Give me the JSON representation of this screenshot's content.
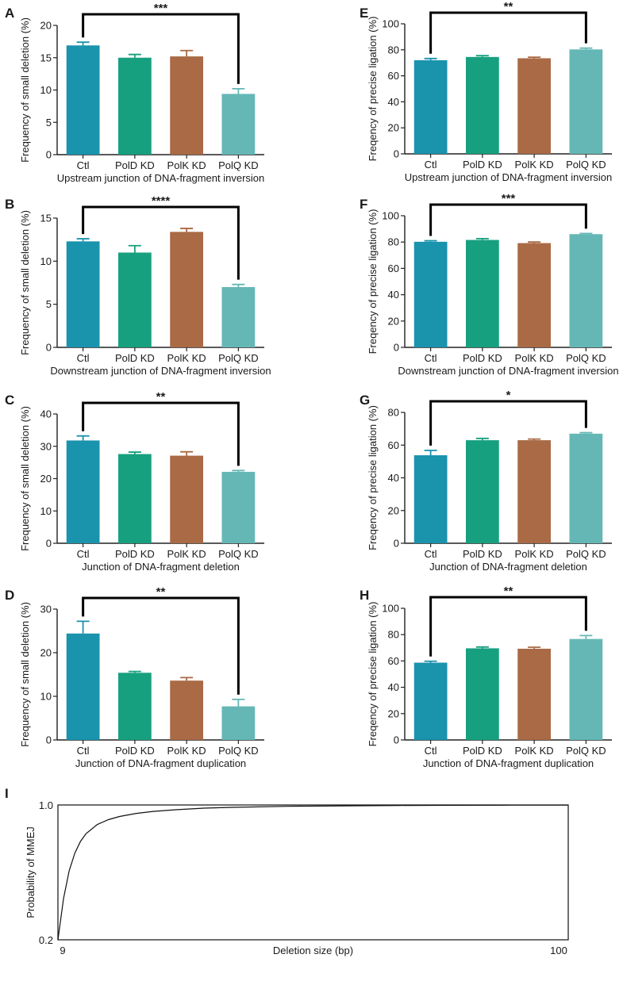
{
  "figure_colors": [
    "#1a93ad",
    "#17a07f",
    "#a96a45",
    "#65b7b5"
  ],
  "chart_data": [
    {
      "panel": "A",
      "type": "bar",
      "categories": [
        "Ctl",
        "PolD KD",
        "PolK KD",
        "PolQ KD"
      ],
      "values": [
        16.9,
        15.0,
        15.2,
        9.4
      ],
      "errors": [
        0.5,
        0.5,
        0.9,
        0.8
      ],
      "ylabel": "Frequency of small deletion (%)",
      "xlabel": "Upstream junction of DNA-fragment inversion",
      "ylim": [
        0,
        20
      ],
      "yticks": [
        0,
        5,
        10,
        15,
        20
      ],
      "significance": {
        "from": 0,
        "to": 3,
        "label": "***"
      }
    },
    {
      "panel": "B",
      "type": "bar",
      "categories": [
        "Ctl",
        "PolD KD",
        "PolK KD",
        "PolQ KD"
      ],
      "values": [
        12.3,
        11.0,
        13.4,
        7.0
      ],
      "errors": [
        0.3,
        0.8,
        0.4,
        0.3
      ],
      "ylabel": "Frequency of small deletion (%)",
      "xlabel": "Downstream junction of DNA-fragment inversion",
      "ylim": [
        0,
        15
      ],
      "yticks": [
        0,
        5,
        10,
        15
      ],
      "significance": {
        "from": 0,
        "to": 3,
        "label": "****"
      }
    },
    {
      "panel": "C",
      "type": "bar",
      "categories": [
        "Ctl",
        "PolD KD",
        "PolK KD",
        "PolQ KD"
      ],
      "values": [
        31.8,
        27.6,
        27.1,
        22.1
      ],
      "errors": [
        1.4,
        0.6,
        1.2,
        0.4
      ],
      "ylabel": "Frequency of small deletion (%)",
      "xlabel": "Junction of DNA-fragment deletion",
      "ylim": [
        0,
        40
      ],
      "yticks": [
        0,
        10,
        20,
        30,
        40
      ],
      "significance": {
        "from": 0,
        "to": 3,
        "label": "**"
      }
    },
    {
      "panel": "D",
      "type": "bar",
      "categories": [
        "Ctl",
        "PolD KD",
        "PolK KD",
        "PolQ KD"
      ],
      "values": [
        24.4,
        15.4,
        13.6,
        7.7
      ],
      "errors": [
        2.8,
        0.3,
        0.7,
        1.6
      ],
      "ylabel": "Frequency of small deletion (%)",
      "xlabel": "Junction of DNA-fragment duplication",
      "ylim": [
        0,
        30
      ],
      "yticks": [
        0,
        10,
        20,
        30
      ],
      "significance": {
        "from": 0,
        "to": 3,
        "label": "**"
      }
    },
    {
      "panel": "E",
      "type": "bar",
      "categories": [
        "Ctl",
        "PolD KD",
        "PolK KD",
        "PolQ KD"
      ],
      "values": [
        72,
        74.5,
        73.5,
        80.3
      ],
      "errors": [
        1.3,
        1.0,
        0.8,
        1.0
      ],
      "ylabel": "Freqency of precise ligation (%)",
      "xlabel": "Upstream junction of DNA-fragment inversion",
      "ylim": [
        0,
        100
      ],
      "yticks": [
        0,
        20,
        40,
        60,
        80,
        100
      ],
      "significance": {
        "from": 0,
        "to": 3,
        "label": "**"
      }
    },
    {
      "panel": "F",
      "type": "bar",
      "categories": [
        "Ctl",
        "PolD KD",
        "PolK KD",
        "PolQ KD"
      ],
      "values": [
        80.2,
        81.6,
        79.2,
        86.0
      ],
      "errors": [
        0.8,
        1.0,
        0.8,
        0.5
      ],
      "ylabel": "Freqency of precise ligation (%)",
      "xlabel": "Downstream junction of DNA-fragment inversion",
      "ylim": [
        0,
        100
      ],
      "yticks": [
        0,
        20,
        40,
        60,
        80,
        100
      ],
      "significance": {
        "from": 0,
        "to": 3,
        "label": "***"
      }
    },
    {
      "panel": "G",
      "type": "bar",
      "categories": [
        "Ctl",
        "PolD KD",
        "PolK KD",
        "PolQ KD"
      ],
      "values": [
        53.8,
        63.0,
        63.0,
        67.0
      ],
      "errors": [
        3.0,
        1.1,
        0.7,
        0.6
      ],
      "ylabel": "Freqency of precise ligation (%)",
      "xlabel": "Junction of DNA-fragment deletion",
      "ylim": [
        0,
        80
      ],
      "yticks": [
        0,
        20,
        40,
        60,
        80
      ],
      "significance": {
        "from": 0,
        "to": 3,
        "label": "*"
      }
    },
    {
      "panel": "H",
      "type": "bar",
      "categories": [
        "Ctl",
        "PolD KD",
        "PolK KD",
        "PolQ KD"
      ],
      "values": [
        58.7,
        69.6,
        69.3,
        76.7
      ],
      "errors": [
        1.1,
        1.0,
        1.1,
        2.6
      ],
      "ylabel": "Freqency of precise ligation (%)",
      "xlabel": "Junction of DNA-fragment duplication",
      "ylim": [
        0,
        100
      ],
      "yticks": [
        0,
        20,
        40,
        60,
        80,
        100
      ],
      "significance": {
        "from": 0,
        "to": 3,
        "label": "**"
      }
    },
    {
      "panel": "I",
      "type": "line",
      "ylabel": "Probability of MMEJ",
      "xlabel": "Deletion size (bp)",
      "xlim": [
        9,
        100
      ],
      "ylim": [
        0.2,
        1.0
      ],
      "xticks": [
        9,
        100
      ],
      "yticks": [
        "0.2",
        "1.0"
      ],
      "series": [
        {
          "name": "Probability of MMEJ",
          "x": [
            9,
            10,
            11,
            12,
            13,
            14,
            16,
            18,
            20,
            23,
            26,
            30,
            35,
            40,
            50,
            60,
            70,
            80,
            90,
            100
          ],
          "y": [
            0.2,
            0.446,
            0.608,
            0.713,
            0.783,
            0.829,
            0.884,
            0.913,
            0.932,
            0.95,
            0.962,
            0.972,
            0.981,
            0.986,
            0.992,
            0.995,
            0.997,
            0.998,
            0.999,
            0.999
          ]
        }
      ]
    }
  ]
}
